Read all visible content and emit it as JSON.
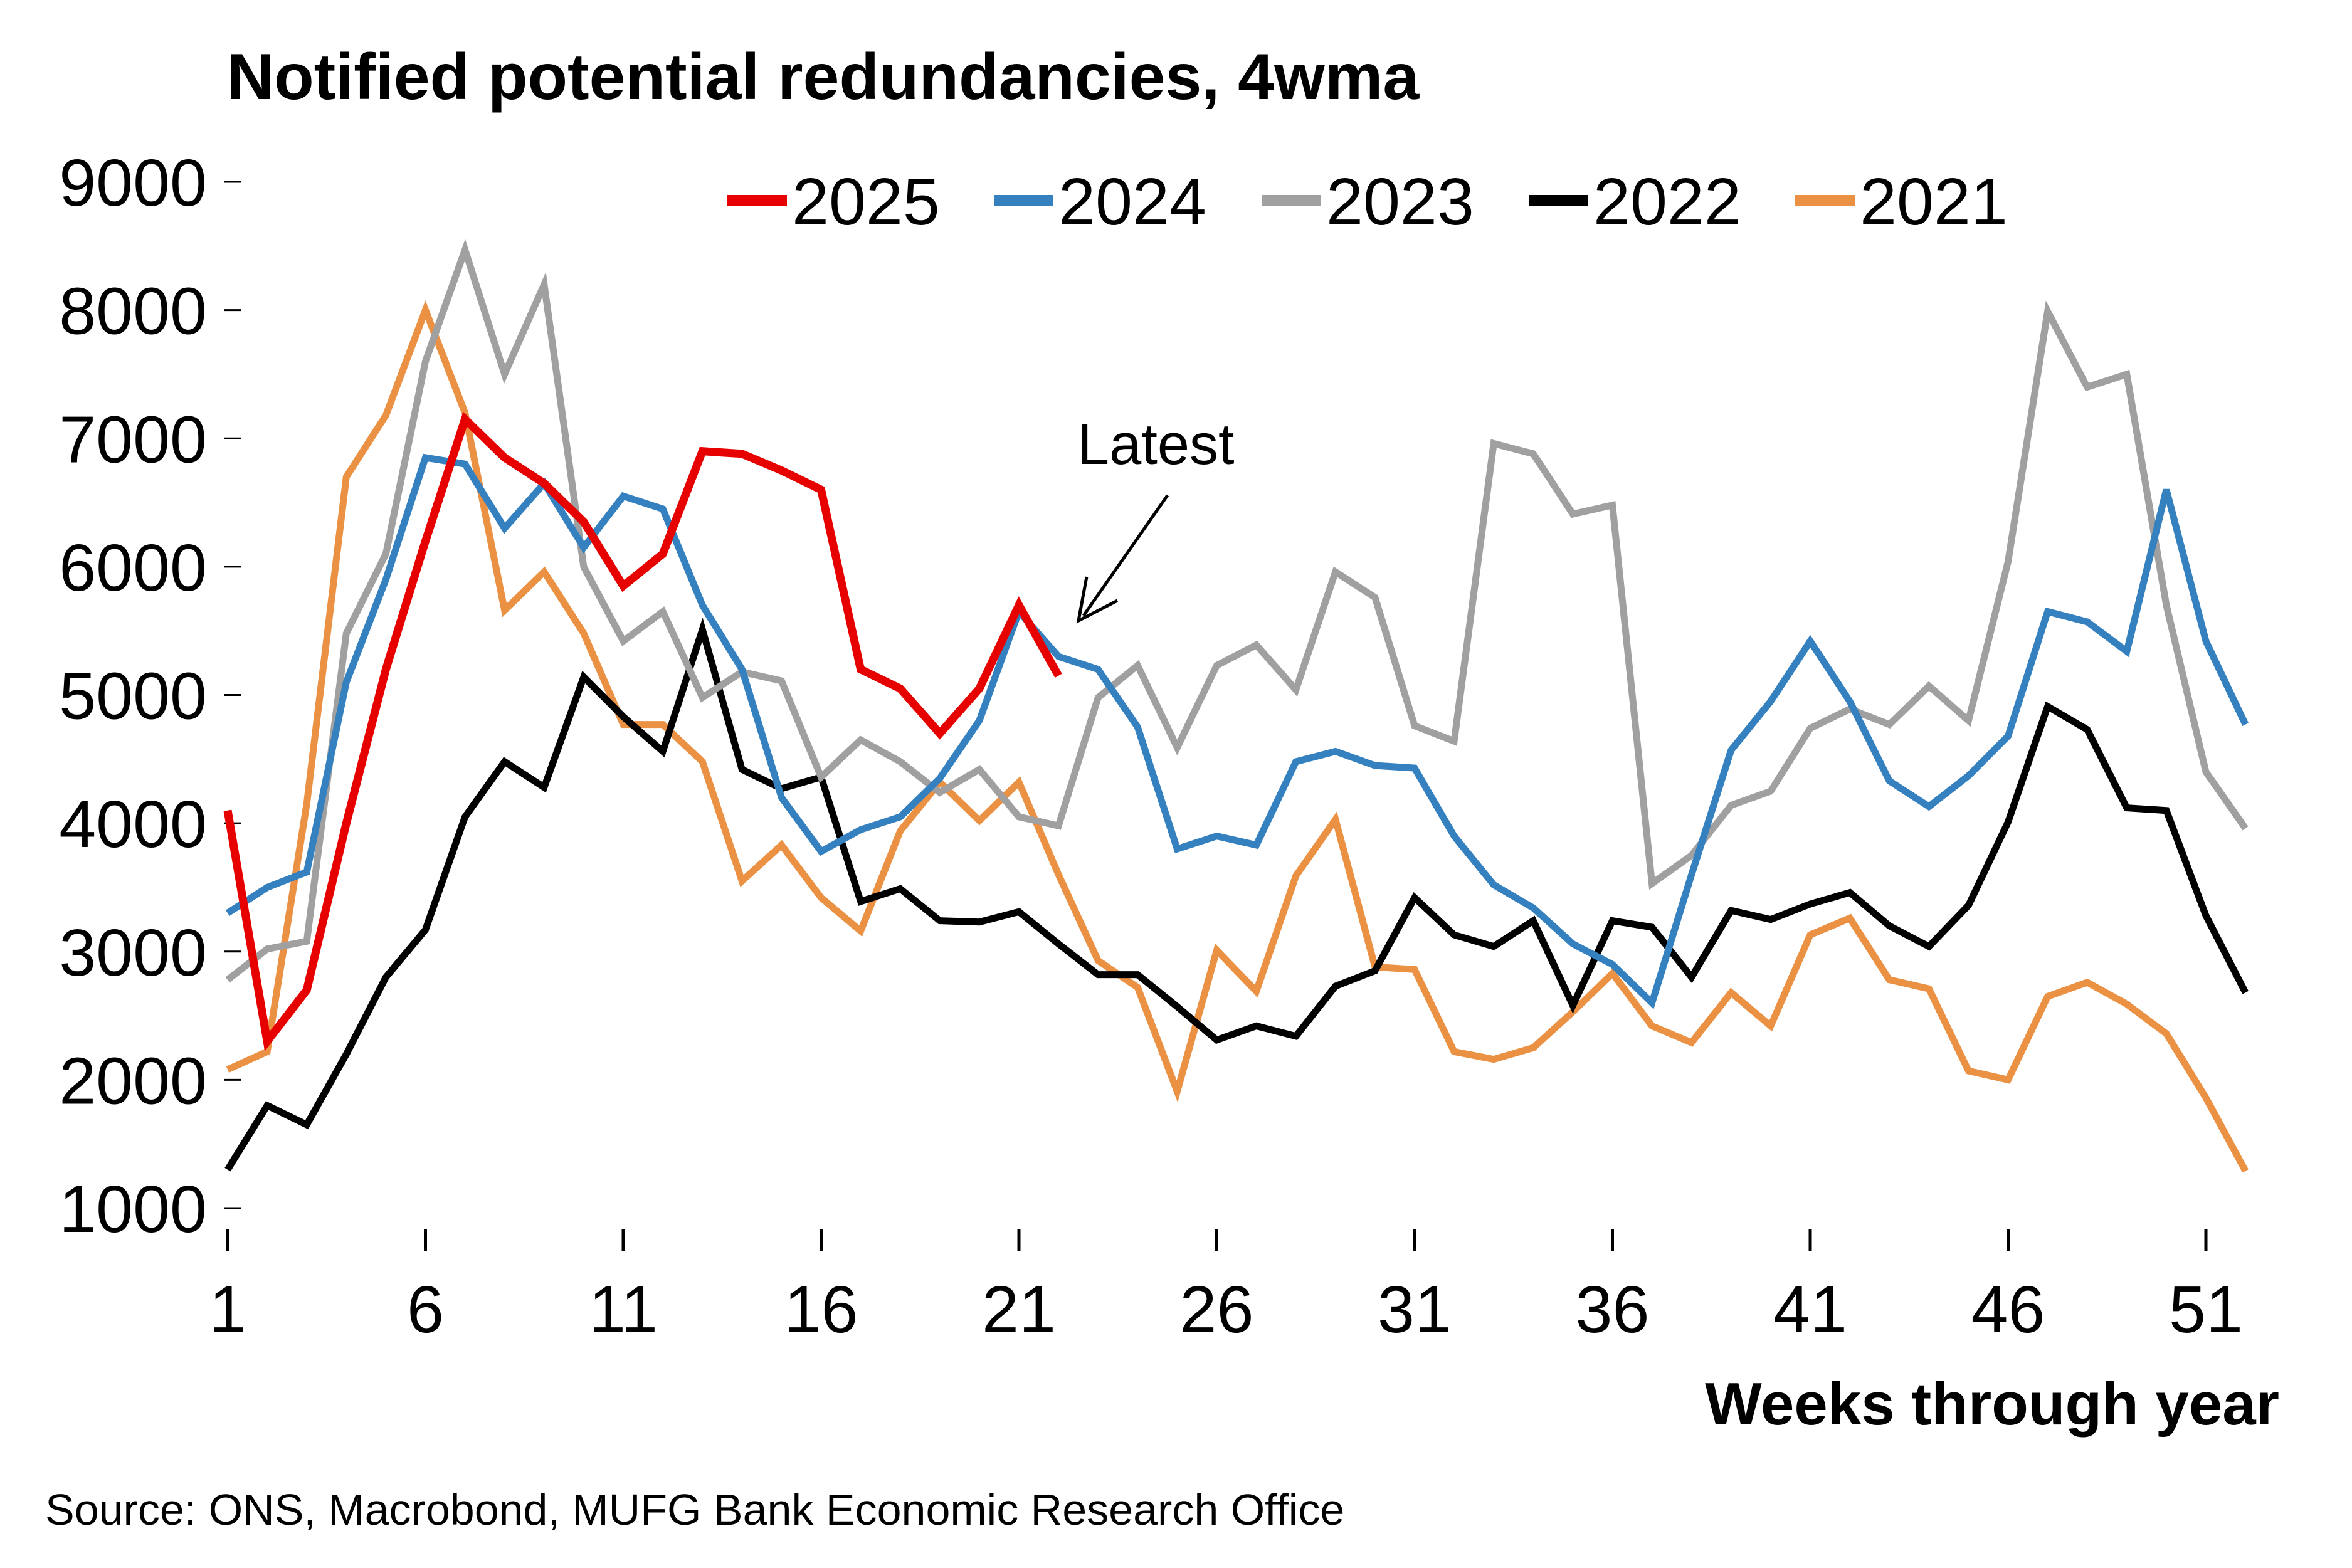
{
  "chart_data": {
    "type": "line",
    "title": "Notified potential redundancies, 4wma",
    "xlabel": "Weeks through year",
    "ylabel": "",
    "source": "Source: ONS, Macrobond, MUFG Bank Economic Research Office",
    "xlim": [
      1,
      52
    ],
    "ylim": [
      1000,
      9000
    ],
    "x_ticks": [
      1,
      6,
      11,
      16,
      21,
      26,
      31,
      36,
      41,
      46,
      51
    ],
    "y_ticks": [
      1000,
      2000,
      3000,
      4000,
      5000,
      6000,
      7000,
      8000,
      9000
    ],
    "grid": false,
    "legend_position": "top-right",
    "annotations": [
      {
        "text": "Latest",
        "series": "2025",
        "week": 22
      }
    ],
    "series": [
      {
        "name": "2025",
        "color": "#e60000",
        "start_week": 1,
        "values": [
          4100,
          2300,
          2700,
          4000,
          5200,
          6200,
          7150,
          6850,
          6650,
          6350,
          5850,
          6100,
          6900,
          6880,
          6750,
          6600,
          5200,
          5050,
          4700,
          5050,
          5700,
          5150
        ]
      },
      {
        "name": "2024",
        "color": "#3580bf",
        "start_week": 1,
        "values": [
          3300,
          3500,
          3620,
          5100,
          5900,
          6850,
          6800,
          6300,
          6650,
          6150,
          6550,
          6450,
          5700,
          5200,
          4200,
          3780,
          3950,
          4050,
          4350,
          4800,
          5650,
          5300,
          5200,
          4750,
          3800,
          3900,
          3830,
          4480,
          4560,
          4450,
          4430,
          3900,
          3520,
          3340,
          3060,
          2900,
          2600,
          3600,
          4570,
          4950,
          5420,
          4950,
          4330,
          4130,
          4370,
          4680,
          5650,
          5570,
          5340,
          6600,
          5420,
          4770
        ]
      },
      {
        "name": "2023",
        "color": "#a0a0a0",
        "start_week": 1,
        "values": [
          2780,
          3020,
          3080,
          5480,
          6100,
          7600,
          8470,
          7500,
          8200,
          6000,
          5420,
          5650,
          4980,
          5180,
          5110,
          4360,
          4650,
          4480,
          4240,
          4420,
          4050,
          3980,
          4980,
          5230,
          4590,
          5230,
          5390,
          5040,
          5960,
          5760,
          4760,
          4640,
          6960,
          6880,
          6410,
          6480,
          3530,
          3750,
          4140,
          4250,
          4740,
          4890,
          4770,
          5070,
          4800,
          6040,
          7990,
          7400,
          7500,
          5700,
          4400,
          3960
        ]
      },
      {
        "name": "2022",
        "color": "#000000",
        "start_week": 1,
        "values": [
          1300,
          1800,
          1650,
          2200,
          2800,
          3170,
          4050,
          4480,
          4280,
          5140,
          4830,
          4560,
          5510,
          4420,
          4270,
          4360,
          3390,
          3490,
          3240,
          3230,
          3310,
          3060,
          2820,
          2820,
          2570,
          2310,
          2420,
          2340,
          2730,
          2850,
          3420,
          3130,
          3040,
          3240,
          2580,
          3240,
          3190,
          2800,
          3320,
          3250,
          3370,
          3460,
          3200,
          3040,
          3360,
          4010,
          4910,
          4730,
          4120,
          4100,
          3280,
          2680
        ]
      },
      {
        "name": "2021",
        "color": "#eb9144",
        "start_week": 1,
        "values": [
          2080,
          2220,
          4150,
          6700,
          7180,
          8000,
          7200,
          5660,
          5960,
          5480,
          4770,
          4770,
          4480,
          3550,
          3830,
          3420,
          3160,
          3940,
          4320,
          4020,
          4320,
          3600,
          2930,
          2720,
          1910,
          3010,
          2690,
          3590,
          4030,
          2880,
          2860,
          2220,
          2160,
          2250,
          2530,
          2830,
          2420,
          2290,
          2680,
          2420,
          3130,
          3260,
          2780,
          2710,
          2070,
          2000,
          2650,
          2760,
          2590,
          2360,
          1860,
          1290
        ]
      }
    ]
  }
}
